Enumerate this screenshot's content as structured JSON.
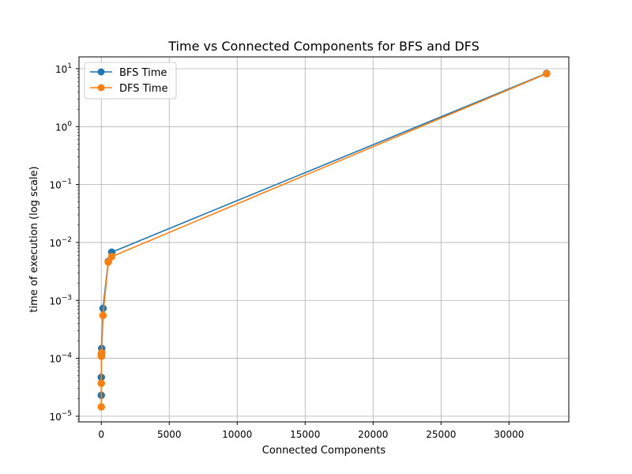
{
  "chart_data": {
    "type": "line",
    "title": "Time vs Connected Components for BFS and DFS",
    "xlabel": "Connected Components",
    "ylabel": "time of execution (log scale)",
    "yscale": "log",
    "xlim": [
      -1640,
      34400
    ],
    "ylim": [
      8e-06,
      16
    ],
    "xticks": [
      0,
      5000,
      10000,
      15000,
      20000,
      25000,
      30000
    ],
    "yticks": [
      1e-05,
      0.0001,
      0.001,
      0.01,
      0.1,
      1,
      10
    ],
    "ytick_labels": [
      {
        "base": "10",
        "exp": "−5"
      },
      {
        "base": "10",
        "exp": "−4"
      },
      {
        "base": "10",
        "exp": "−3"
      },
      {
        "base": "10",
        "exp": "−2"
      },
      {
        "base": "10",
        "exp": "−1"
      },
      {
        "base": "10",
        "exp": "0"
      },
      {
        "base": "10",
        "exp": "1"
      }
    ],
    "grid": true,
    "legend_position": "top-left",
    "series": [
      {
        "name": "BFS Time",
        "color": "#1f77b4",
        "marker": "circle",
        "x": [
          1,
          2,
          8,
          32,
          128,
          512,
          768,
          32768
        ],
        "y": [
          2.3e-05,
          4.7e-05,
          0.000118,
          0.000148,
          0.00073,
          0.0047,
          0.0068,
          8.3
        ]
      },
      {
        "name": "DFS Time",
        "color": "#ff7f0e",
        "marker": "circle",
        "x": [
          1,
          2,
          8,
          32,
          128,
          512,
          768,
          32768
        ],
        "y": [
          1.45e-05,
          3.7e-05,
          0.000108,
          0.000125,
          0.00055,
          0.0046,
          0.0057,
          8.2
        ]
      }
    ]
  }
}
